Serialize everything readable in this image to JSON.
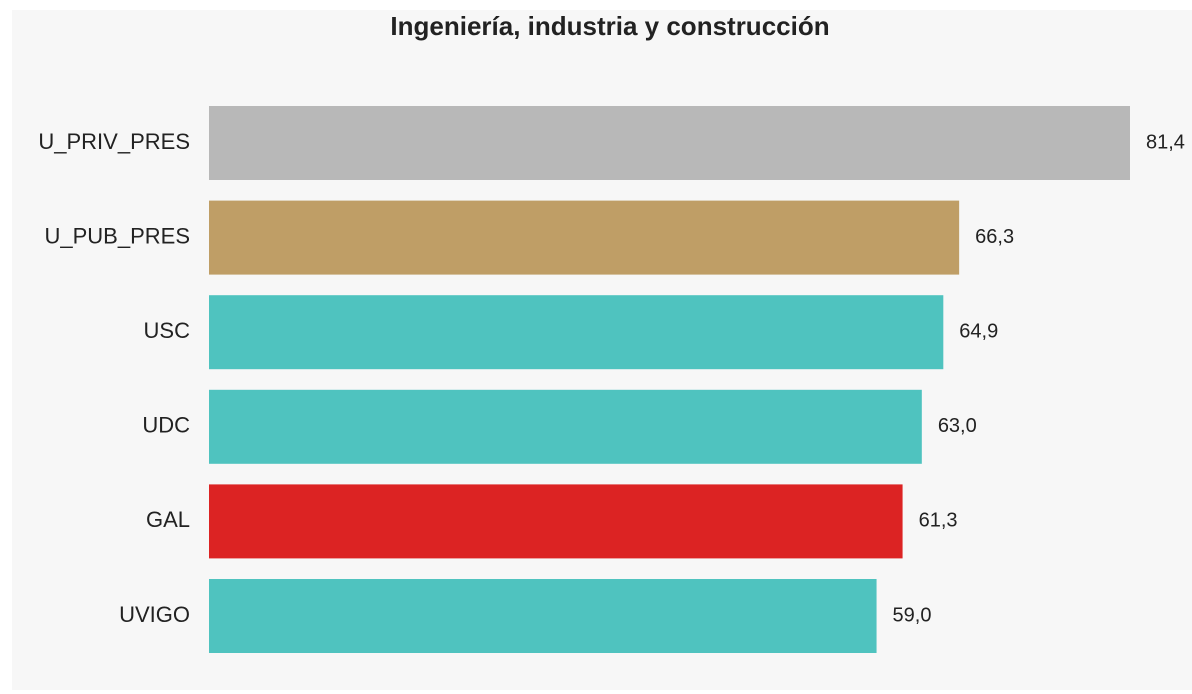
{
  "chart_data": {
    "type": "barh",
    "title": "Ingeniería, industria y construcción",
    "categories": [
      "U_PRIV_PRES",
      "U_PUB_PRES",
      "USC",
      "UDC",
      "GAL",
      "UVIGO"
    ],
    "values": [
      81.4,
      66.3,
      64.9,
      63.0,
      61.3,
      59.0
    ],
    "value_labels": [
      "81,4",
      "66,3",
      "64,9",
      "63,0",
      "61,3",
      "59,0"
    ],
    "colors": [
      "#b8b8b8",
      "#bf9e66",
      "#4fc3bf",
      "#4fc3bf",
      "#dc2323",
      "#4fc3bf"
    ]
  }
}
